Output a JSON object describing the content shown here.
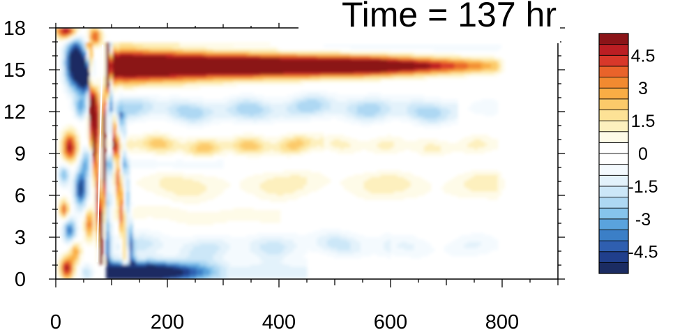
{
  "chart_data": {
    "type": "heatmap",
    "title": "Time = 137 hr",
    "xlabel": "",
    "ylabel": "",
    "xlim": [
      0,
      900
    ],
    "ylim": [
      0,
      18
    ],
    "x_ticks": [
      "0",
      "200",
      "400",
      "600",
      "800"
    ],
    "x_tick_values": [
      0,
      200,
      400,
      600,
      800
    ],
    "y_ticks": [
      "0",
      "3",
      "6",
      "9",
      "12",
      "15",
      "18"
    ],
    "y_tick_values": [
      0,
      3,
      6,
      9,
      12,
      15,
      18
    ],
    "colorbar": {
      "min": -5.5,
      "max": 5.5,
      "step": 0.5,
      "labels": [
        "4.5",
        "3",
        "1.5",
        "0",
        "-1.5",
        "-3",
        "-4.5"
      ],
      "label_values": [
        4.5,
        3,
        1.5,
        0,
        -1.5,
        -3,
        -4.5
      ],
      "colors": [
        "#1b2c62",
        "#203f8c",
        "#2f5fb0",
        "#3b7fc7",
        "#5aa3dd",
        "#86c4ec",
        "#aed8f3",
        "#cce7f8",
        "#e3f2fb",
        "#f4fafe",
        "#ffffff",
        "#ffffff",
        "#fefbe8",
        "#fdf0be",
        "#fde296",
        "#fcca6a",
        "#f9ad45",
        "#f28a30",
        "#e9632a",
        "#d8382a",
        "#bb1e23",
        "#8b1418"
      ]
    },
    "features": [
      {
        "name": "upper-jet-positive",
        "x": [
          90,
          800
        ],
        "y_center": 15.3,
        "value": 5.5
      },
      {
        "name": "surface-negative",
        "x": [
          80,
          260
        ],
        "y_center": 0.6,
        "value": -5.0
      },
      {
        "name": "band-12-negative",
        "x": [
          130,
          700
        ],
        "y_center": 12.3,
        "value": -1.8
      },
      {
        "name": "band-9-5-positive",
        "x": [
          180,
          700
        ],
        "y_center": 9.6,
        "value": 1.4
      },
      {
        "name": "band-7-positive",
        "x": [
          150,
          760
        ],
        "y_center": 7.0,
        "value": 1.2
      },
      {
        "name": "band-3-negative",
        "x": [
          150,
          700
        ],
        "y_center": 2.5,
        "value": -1.0
      },
      {
        "name": "shock-front",
        "x": 88,
        "y": [
          1,
          17
        ],
        "value": 6.0
      }
    ]
  }
}
